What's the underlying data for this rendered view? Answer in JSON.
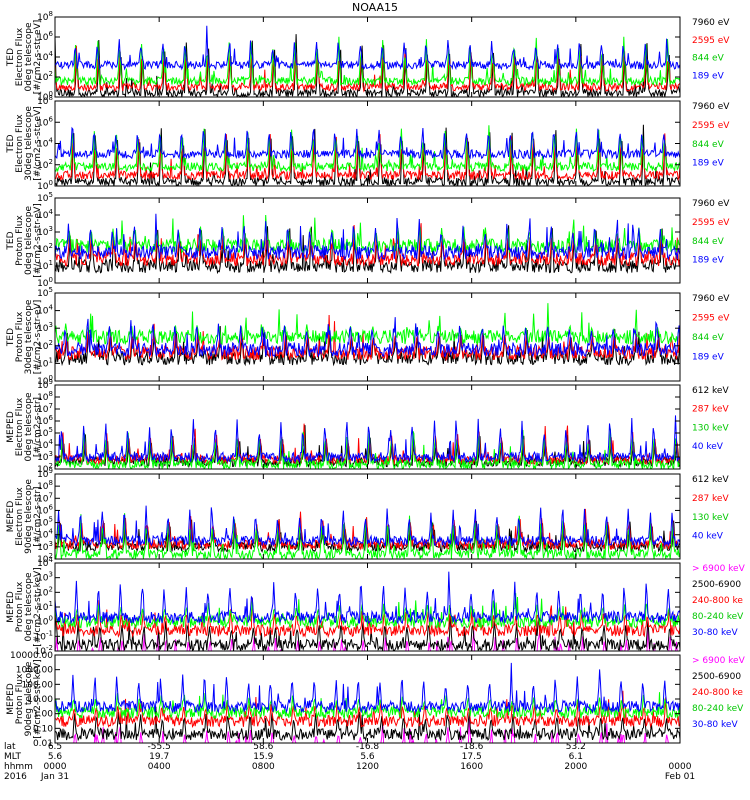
{
  "title": "NOAA15",
  "colors": {
    "black": "#000000",
    "blue": "#0000ff",
    "red": "#ff0000",
    "green": "#00ff00",
    "magenta": "#ff00ff"
  },
  "chart_data": [
    {
      "type": "line",
      "ylabel": [
        "TED",
        "Electron Flux",
        "0deg telescope",
        "[#/cm2-s-str-eV]"
      ],
      "yscale": "log",
      "ylim": [
        1,
        100000000
      ],
      "ytick_labels": [
        "10^0",
        "10^2",
        "10^4",
        "10^6",
        "10^8"
      ],
      "legend_placement": "right",
      "series": [
        {
          "name": "7960 eV",
          "color": "#000000",
          "baseline_log10": 0.4,
          "peak_log10": 6.5
        },
        {
          "name": "2595 eV",
          "color": "#ff0000",
          "baseline_log10": 1.0,
          "peak_log10": 5.5
        },
        {
          "name": "844 eV",
          "color": "#00ff00",
          "baseline_log10": 1.6,
          "peak_log10": 6.3
        },
        {
          "name": "189 eV",
          "color": "#0000ff",
          "baseline_log10": 3.2,
          "peak_log10": 6.0
        }
      ]
    },
    {
      "type": "line",
      "ylabel": [
        "TED",
        "Electron Flux",
        "30deg telescope",
        "[#/cm2-s-str-eV]"
      ],
      "yscale": "log",
      "ylim": [
        1,
        100000000
      ],
      "ytick_labels": [
        "10^0",
        "10^2",
        "10^4",
        "10^6",
        "10^8"
      ],
      "legend_placement": "right",
      "series": [
        {
          "name": "7960 eV",
          "color": "#000000",
          "baseline_log10": 0.4,
          "peak_log10": 6.0
        },
        {
          "name": "2595 eV",
          "color": "#ff0000",
          "baseline_log10": 1.0,
          "peak_log10": 5.2
        },
        {
          "name": "844 eV",
          "color": "#00ff00",
          "baseline_log10": 1.8,
          "peak_log10": 6.0
        },
        {
          "name": "189 eV",
          "color": "#0000ff",
          "baseline_log10": 3.0,
          "peak_log10": 5.8
        }
      ]
    },
    {
      "type": "line",
      "ylabel": [
        "TED",
        "Proton Flux",
        "0deg telescope",
        "[#/cm2-s-str-eV]"
      ],
      "yscale": "log",
      "ylim": [
        1,
        100000
      ],
      "ytick_labels": [
        "10^0",
        "10^1",
        "10^2",
        "10^3",
        "10^4",
        "10^5"
      ],
      "legend_placement": "right",
      "series": [
        {
          "name": "7960 eV",
          "color": "#000000",
          "baseline_log10": 1.0,
          "peak_log10": 3.5
        },
        {
          "name": "2595 eV",
          "color": "#ff0000",
          "baseline_log10": 1.4,
          "peak_log10": 3.2
        },
        {
          "name": "844 eV",
          "color": "#00ff00",
          "baseline_log10": 2.2,
          "peak_log10": 3.5
        },
        {
          "name": "189 eV",
          "color": "#0000ff",
          "baseline_log10": 1.8,
          "peak_log10": 3.8
        }
      ]
    },
    {
      "type": "line",
      "ylabel": [
        "TED",
        "Proton Flux",
        "30deg telescope",
        "[#/cm2-s-str-eV]"
      ],
      "yscale": "log",
      "ylim": [
        1,
        100000
      ],
      "ytick_labels": [
        "10^0",
        "10^1",
        "10^2",
        "10^3",
        "10^4",
        "10^5"
      ],
      "legend_placement": "right",
      "series": [
        {
          "name": "7960 eV",
          "color": "#000000",
          "baseline_log10": 1.3,
          "peak_log10": 3.2
        },
        {
          "name": "2595 eV",
          "color": "#ff0000",
          "baseline_log10": 1.6,
          "peak_log10": 3.0
        },
        {
          "name": "844 eV",
          "color": "#00ff00",
          "baseline_log10": 2.5,
          "peak_log10": 3.3
        },
        {
          "name": "189 eV",
          "color": "#0000ff",
          "baseline_log10": 1.8,
          "peak_log10": 3.6
        }
      ]
    },
    {
      "type": "line",
      "ylabel": [
        "MEPED",
        "Electron Flux",
        "0deg telescope",
        "[#/cm2-s-str]"
      ],
      "yscale": "log",
      "ylim": [
        100,
        1000000000
      ],
      "ytick_labels": [
        "10^2",
        "10^3",
        "10^4",
        "10^5",
        "10^6",
        "10^7",
        "10^8",
        "10^9"
      ],
      "legend_placement": "right",
      "series": [
        {
          "name": "612 keV",
          "color": "#000000",
          "baseline_log10": 2.6,
          "peak_log10": 5.0
        },
        {
          "name": "287 keV",
          "color": "#ff0000",
          "baseline_log10": 2.8,
          "peak_log10": 5.5
        },
        {
          "name": "130 keV",
          "color": "#00ff00",
          "baseline_log10": 2.4,
          "peak_log10": 5.5
        },
        {
          "name": "40 keV",
          "color": "#0000ff",
          "baseline_log10": 3.0,
          "peak_log10": 6.5
        }
      ]
    },
    {
      "type": "line",
      "ylabel": [
        "MEPED",
        "Electron Flux",
        "90deg telescope",
        "[#/cm2-s-str]"
      ],
      "yscale": "log",
      "ylim": [
        100,
        1000000000
      ],
      "ytick_labels": [
        "10^2",
        "10^3",
        "10^4",
        "10^5",
        "10^6",
        "10^7",
        "10^8",
        "10^9"
      ],
      "legend_placement": "right",
      "series": [
        {
          "name": "612 keV",
          "color": "#000000",
          "baseline_log10": 3.0,
          "peak_log10": 5.5
        },
        {
          "name": "287 keV",
          "color": "#ff0000",
          "baseline_log10": 3.2,
          "peak_log10": 6.0
        },
        {
          "name": "130 keV",
          "color": "#00ff00",
          "baseline_log10": 2.4,
          "peak_log10": 6.0
        },
        {
          "name": "40 keV",
          "color": "#0000ff",
          "baseline_log10": 3.5,
          "peak_log10": 6.5
        }
      ]
    },
    {
      "type": "line",
      "ylabel": [
        "MEPED",
        "Proton Flux",
        "0deg telescope",
        "[#/cm2-s-str-keV]"
      ],
      "yscale": "log",
      "ylim": [
        0.01,
        10000
      ],
      "ytick_labels": [
        "10^-2",
        "10^-1",
        "10^0",
        "10^1",
        "10^2",
        "10^3",
        "10^4"
      ],
      "legend_placement": "right",
      "series": [
        {
          "name": "> 6900 keV",
          "color": "#ff00ff",
          "baseline_log10": -2.5,
          "peak_log10": -0.8
        },
        {
          "name": "2500-6900",
          "color": "#000000",
          "baseline_log10": -1.6,
          "peak_log10": 0.3
        },
        {
          "name": "240-800 ke",
          "color": "#ff0000",
          "baseline_log10": -0.6,
          "peak_log10": 1.0
        },
        {
          "name": "80-240 keV",
          "color": "#00ff00",
          "baseline_log10": 0.0,
          "peak_log10": 1.5
        },
        {
          "name": "30-80 keV",
          "color": "#0000ff",
          "baseline_log10": 0.3,
          "peak_log10": 3.0
        }
      ]
    },
    {
      "type": "line",
      "ylabel": [
        "MEPED",
        "Proton Flux",
        "90deg telescope",
        "[#/cm2-s-str-keV]"
      ],
      "yscale": "log",
      "ylim": [
        0.01,
        10000
      ],
      "ytick_labels": [
        "0.01",
        "0.10",
        "1.00",
        "10.00",
        "100.00",
        "1000.00",
        "10000.00"
      ],
      "legend_placement": "right",
      "series": [
        {
          "name": "> 6900 keV",
          "color": "#ff00ff",
          "baseline_log10": -2.5,
          "peak_log10": -0.8
        },
        {
          "name": "2500-6900",
          "color": "#000000",
          "baseline_log10": -1.4,
          "peak_log10": 0.3
        },
        {
          "name": "240-800 ke",
          "color": "#ff0000",
          "baseline_log10": -0.5,
          "peak_log10": 1.0
        },
        {
          "name": "80-240 keV",
          "color": "#00ff00",
          "baseline_log10": 0.1,
          "peak_log10": 1.5
        },
        {
          "name": "30-80 keV",
          "color": "#0000ff",
          "baseline_log10": 0.5,
          "peak_log10": 3.0
        }
      ]
    }
  ],
  "time_axis": {
    "row_labels": [
      "lat",
      "MLT",
      "hhmm",
      "2016"
    ],
    "start_hour": 0,
    "end_hour": 24,
    "orbit_period_minutes": 101,
    "ticks": [
      {
        "hour": 0,
        "lat": "6.5",
        "mlt": "5.6",
        "hhmm": "0000",
        "date": "Jan 31"
      },
      {
        "hour": 4,
        "lat": "-55.5",
        "mlt": "19.7",
        "hhmm": "0400",
        "date": ""
      },
      {
        "hour": 8,
        "lat": "58.6",
        "mlt": "15.9",
        "hhmm": "0800",
        "date": ""
      },
      {
        "hour": 12,
        "lat": "-16.8",
        "mlt": "5.6",
        "hhmm": "1200",
        "date": ""
      },
      {
        "hour": 16,
        "lat": "-18.6",
        "mlt": "17.5",
        "hhmm": "1600",
        "date": ""
      },
      {
        "hour": 20,
        "lat": "53.2",
        "mlt": "6.1",
        "hhmm": "2000",
        "date": ""
      },
      {
        "hour": 24,
        "lat": "",
        "mlt": "",
        "hhmm": "0000",
        "date": "Feb 01"
      }
    ]
  }
}
